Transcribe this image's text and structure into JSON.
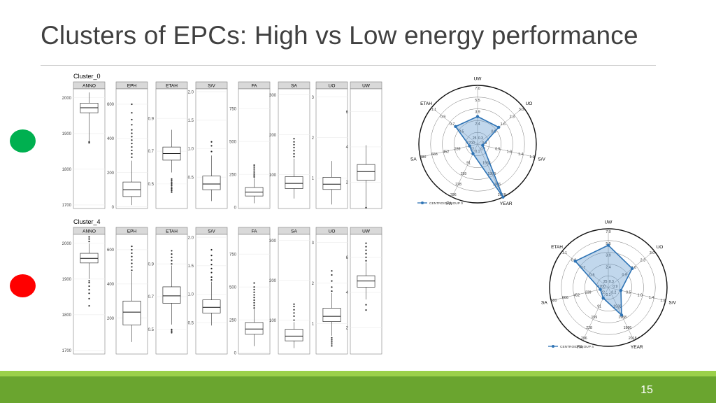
{
  "slide": {
    "title": "Clusters of EPCs: High vs Low energy performance",
    "page_number": "15"
  },
  "indicators": [
    {
      "color": "#00b050"
    },
    {
      "color": "#ff0000"
    }
  ],
  "chart_data": [
    {
      "type": "boxplot",
      "title": "Cluster_0",
      "panels": [
        {
          "name": "ANNO",
          "yticks": [
            "2000",
            "1900",
            "1800",
            "1700"
          ],
          "ylim": [
            1690,
            2025
          ],
          "box": {
            "whisker_low": 1880,
            "q1": 1958,
            "median": 1972,
            "q3": 1985,
            "whisker_high": 2015
          },
          "outliers": [
            1874,
            1876,
            1877
          ]
        },
        {
          "name": "EPH",
          "yticks": [
            "600",
            "400",
            "200",
            "0"
          ],
          "ylim": [
            -10,
            690
          ],
          "box": {
            "whisker_low": 10,
            "q1": 60,
            "median": 100,
            "q3": 145,
            "whisker_high": 270
          },
          "outliers": [
            290,
            310,
            330,
            350,
            370,
            390,
            410,
            430,
            450,
            480,
            510,
            550,
            600
          ]
        },
        {
          "name": "ETAH",
          "yticks": [
            "0.9",
            "0.7",
            "0.5"
          ],
          "ylim": [
            0.35,
            1.08
          ],
          "box": {
            "whisker_low": 0.57,
            "q1": 0.645,
            "median": 0.685,
            "q3": 0.725,
            "whisker_high": 0.83
          },
          "outliers": [
            0.53,
            0.52,
            0.51,
            0.5,
            0.49,
            0.48,
            0.47,
            0.46,
            0.45
          ]
        },
        {
          "name": "S/V",
          "yticks": [
            "2.0",
            "1.5",
            "1.0",
            "0.5"
          ],
          "ylim": [
            -0.05,
            2.05
          ],
          "box": {
            "whisker_low": 0.08,
            "q1": 0.28,
            "median": 0.38,
            "q3": 0.52,
            "whisker_high": 0.88
          },
          "outliers": [
            0.95,
            1.05,
            1.12
          ]
        },
        {
          "name": "FA",
          "yticks": [
            "750",
            "500",
            "250",
            "0"
          ],
          "ylim": [
            -10,
            900
          ],
          "box": {
            "whisker_low": 30,
            "q1": 85,
            "median": 115,
            "q3": 150,
            "whisker_high": 220
          },
          "outliers": [
            230,
            245,
            260,
            275,
            290,
            305,
            320
          ]
        },
        {
          "name": "SA",
          "yticks": [
            "300",
            "200",
            "100"
          ],
          "ylim": [
            15,
            315
          ],
          "box": {
            "whisker_low": 40,
            "q1": 65,
            "median": 78,
            "q3": 95,
            "whisker_high": 140
          },
          "outliers": [
            145,
            152,
            160,
            168,
            175,
            182,
            190
          ]
        },
        {
          "name": "UO",
          "yticks": [
            "3",
            "2",
            "1"
          ],
          "ylim": [
            0.25,
            3.2
          ],
          "box": {
            "whisker_low": 0.35,
            "q1": 0.72,
            "median": 0.85,
            "q3": 1.02,
            "whisker_high": 1.42
          },
          "outliers": []
        },
        {
          "name": "UW",
          "yticks": [
            "6",
            "4",
            "2"
          ],
          "ylim": [
            0.5,
            7.3
          ],
          "box": {
            "whisker_low": 0.6,
            "q1": 2.1,
            "median": 2.6,
            "q3": 3.0,
            "whisker_high": 4.1
          },
          "outliers": [
            0.55
          ]
        }
      ]
    },
    {
      "type": "boxplot",
      "title": "Cluster_4",
      "panels": [
        {
          "name": "ANNO",
          "yticks": [
            "2000",
            "1900",
            "1800",
            "1700"
          ],
          "ylim": [
            1690,
            2025
          ],
          "box": {
            "whisker_low": 1900,
            "q1": 1945,
            "median": 1958,
            "q3": 1972,
            "whisker_high": 2000
          },
          "outliers": [
            1825,
            1845,
            1860,
            1870,
            1880,
            1890,
            1895,
            2005,
            2012,
            2018
          ]
        },
        {
          "name": "EPH",
          "yticks": [
            "600",
            "400",
            "200"
          ],
          "ylim": [
            -10,
            690
          ],
          "box": {
            "whisker_low": 60,
            "q1": 160,
            "median": 235,
            "q3": 300,
            "whisker_high": 470
          },
          "outliers": [
            480,
            500,
            520,
            540,
            560,
            580,
            600,
            620
          ]
        },
        {
          "name": "ETAH",
          "yticks": [
            "0.9",
            "0.7",
            "0.5"
          ],
          "ylim": [
            0.35,
            1.08
          ],
          "box": {
            "whisker_low": 0.53,
            "q1": 0.66,
            "median": 0.705,
            "q3": 0.76,
            "whisker_high": 0.89
          },
          "outliers": [
            0.9,
            0.92,
            0.94,
            0.96,
            0.98,
            0.5,
            0.49,
            0.48
          ]
        },
        {
          "name": "S/V",
          "yticks": [
            "2.0",
            "1.5",
            "1.0",
            "0.5"
          ],
          "ylim": [
            -0.05,
            2.05
          ],
          "box": {
            "whisker_low": 0.45,
            "q1": 0.67,
            "median": 0.77,
            "q3": 0.9,
            "whisker_high": 1.22
          },
          "outliers": [
            1.25,
            1.3,
            1.38,
            1.45,
            1.52,
            1.6,
            1.68,
            1.78
          ]
        },
        {
          "name": "FA",
          "yticks": [
            "750",
            "500",
            "250",
            "0"
          ],
          "ylim": [
            -10,
            900
          ],
          "box": {
            "whisker_low": 50,
            "q1": 140,
            "median": 180,
            "q3": 230,
            "whisker_high": 330
          },
          "outliers": [
            340,
            360,
            380,
            400,
            420,
            440,
            460,
            480,
            500,
            530
          ]
        },
        {
          "name": "SA",
          "yticks": [
            "300",
            "200",
            "100"
          ],
          "ylim": [
            15,
            315
          ],
          "box": {
            "whisker_low": 30,
            "q1": 48,
            "median": 60,
            "q3": 77,
            "whisker_high": 95
          },
          "outliers": [
            100,
            110,
            118,
            126,
            134,
            140
          ]
        },
        {
          "name": "UO",
          "yticks": [
            "3",
            "2",
            "1"
          ],
          "ylim": [
            0.25,
            3.2
          ],
          "box": {
            "whisker_low": 0.7,
            "q1": 1.05,
            "median": 1.18,
            "q3": 1.38,
            "whisker_high": 1.75
          },
          "outliers": [
            0.45,
            0.5,
            0.55,
            0.6,
            0.65,
            1.8,
            1.9,
            2.05,
            2.2,
            2.3
          ]
        },
        {
          "name": "UW",
          "yticks": [
            "6",
            "4",
            "2"
          ],
          "ylim": [
            0.5,
            7.3
          ],
          "box": {
            "whisker_low": 3.6,
            "q1": 4.3,
            "median": 4.65,
            "q3": 4.95,
            "whisker_high": 5.7
          },
          "outliers": [
            5.8,
            6.0,
            6.2,
            6.4,
            6.6,
            6.8,
            3.3,
            3.0
          ]
        }
      ]
    },
    {
      "type": "radar",
      "legend": "CENTROID GROUP 0",
      "legend_position": "bottom-left",
      "axes": [
        {
          "name": "UW",
          "ticks": [
            "7.0",
            "5.5",
            "3.9",
            "2.4"
          ]
        },
        {
          "name": "UO",
          "ticks": [
            "3.0",
            "2.3",
            "1.6",
            "0.9"
          ]
        },
        {
          "name": "S/V",
          "ticks": [
            "1.9",
            "1.4",
            "1.0",
            "0.5"
          ]
        },
        {
          "name": "YEAR",
          "ticks": [
            "2018",
            "1986",
            "1958",
            "1938"
          ]
        },
        {
          "name": "FA",
          "ticks": [
            "296",
            "228",
            "159",
            "91"
          ]
        },
        {
          "name": "SA",
          "ticks": [
            "880",
            "666",
            "452",
            "239"
          ]
        },
        {
          "name": "ETAH",
          "ticks": [
            "1.1",
            "0.9",
            "0.7",
            "0.5"
          ]
        }
      ],
      "inner_labels": [
        "0.3",
        "0.9",
        "0.2",
        "0.1",
        "22",
        "1700",
        "25"
      ],
      "centroid": [
        0.47,
        0.46,
        0.09,
        1.0,
        0.18,
        0.14,
        0.48
      ]
    },
    {
      "type": "radar",
      "legend": "CENTROID GROUP 4",
      "legend_position": "bottom-left",
      "axes": [
        {
          "name": "UW",
          "ticks": [
            "7.0",
            "5.5",
            "3.9",
            "2.4"
          ]
        },
        {
          "name": "UO",
          "ticks": [
            "3.0",
            "2.3",
            "1.6",
            "0.9"
          ]
        },
        {
          "name": "S/V",
          "ticks": [
            "1.9",
            "1.4",
            "1.0",
            "0.5"
          ]
        },
        {
          "name": "YEAR",
          "ticks": [
            "2018",
            "1986",
            "1958",
            "1938"
          ]
        },
        {
          "name": "FA",
          "ticks": [
            "296",
            "228",
            "159",
            "91"
          ]
        },
        {
          "name": "SA",
          "ticks": [
            "880",
            "666",
            "452",
            "239"
          ]
        },
        {
          "name": "ETAH",
          "ticks": [
            "1.1",
            "0.9",
            "0.7",
            "0.5"
          ]
        }
      ],
      "inner_labels": [
        "0.3",
        "0.9",
        "0.2",
        "0.1",
        "22",
        "1700",
        "25"
      ],
      "centroid": [
        0.72,
        0.52,
        0.22,
        0.52,
        0.2,
        0.14,
        0.72
      ]
    }
  ]
}
